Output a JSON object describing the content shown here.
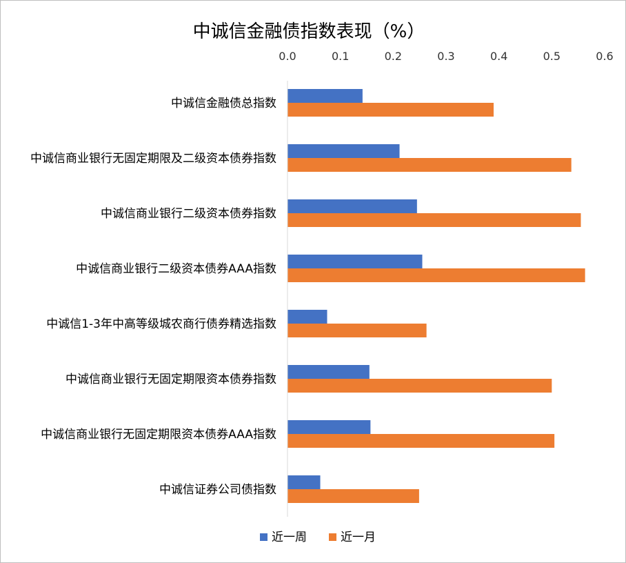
{
  "chart_data": {
    "type": "bar",
    "orientation": "horizontal",
    "title": "中诚信金融债指数表现（%）",
    "xlabel": "",
    "ylabel": "",
    "xlim": [
      0,
      0.6
    ],
    "ticks": [
      "0.0",
      "0.1",
      "0.2",
      "0.3",
      "0.4",
      "0.5",
      "0.6"
    ],
    "tick_values": [
      0,
      0.1,
      0.2,
      0.3,
      0.4,
      0.5,
      0.6
    ],
    "axis_position": "top",
    "grid": false,
    "legend_position": "bottom",
    "categories": [
      "中诚信金融债总指数",
      "中诚信商业银行无固定期限及二级资本债券指数",
      "中诚信商业银行二级资本债券指数",
      "中诚信商业银行二级资本债券AAA指数",
      "中诚信1-3年中高等级城农商行债券精选指数",
      "中诚信商业银行无固定期限资本债券指数",
      "中诚信商业银行无固定期限资本债券AAA指数",
      "中诚信证券公司债指数"
    ],
    "series": [
      {
        "name": "近一周",
        "color": "#4472c4",
        "values": [
          0.142,
          0.212,
          0.245,
          0.255,
          0.075,
          0.155,
          0.157,
          0.062
        ]
      },
      {
        "name": "近一月",
        "color": "#ed7d31",
        "values": [
          0.39,
          0.537,
          0.555,
          0.563,
          0.263,
          0.5,
          0.505,
          0.249
        ]
      }
    ]
  }
}
